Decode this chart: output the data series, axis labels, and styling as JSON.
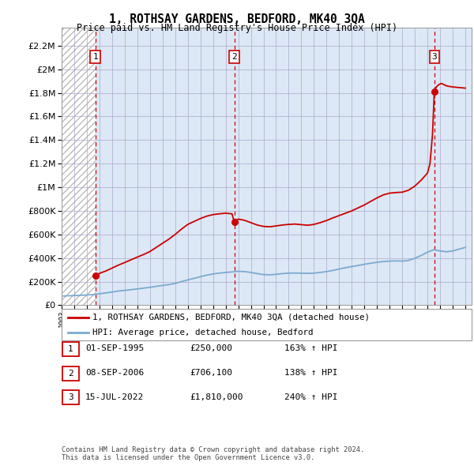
{
  "title": "1, ROTHSAY GARDENS, BEDFORD, MK40 3QA",
  "subtitle": "Price paid vs. HM Land Registry's House Price Index (HPI)",
  "ylabel_values": [
    0,
    200000,
    400000,
    600000,
    800000,
    1000000,
    1200000,
    1400000,
    1600000,
    1800000,
    2000000,
    2200000
  ],
  "ylim": [
    0,
    2350000
  ],
  "xlim_start": 1993.0,
  "xlim_end": 2025.5,
  "sale_dates": [
    1995.67,
    2006.69,
    2022.54
  ],
  "sale_prices": [
    250000,
    706100,
    1810000
  ],
  "sale_labels": [
    "1",
    "2",
    "3"
  ],
  "hpi_color": "#7aaad0",
  "price_color": "#cc0000",
  "legend_label_price": "1, ROTHSAY GARDENS, BEDFORD, MK40 3QA (detached house)",
  "legend_label_hpi": "HPI: Average price, detached house, Bedford",
  "table_rows": [
    {
      "num": "1",
      "date": "01-SEP-1995",
      "price": "£250,000",
      "hpi": "163% ↑ HPI"
    },
    {
      "num": "2",
      "date": "08-SEP-2006",
      "price": "£706,100",
      "hpi": "138% ↑ HPI"
    },
    {
      "num": "3",
      "date": "15-JUL-2022",
      "price": "£1,810,000",
      "hpi": "240% ↑ HPI"
    }
  ],
  "footer": "Contains HM Land Registry data © Crown copyright and database right 2024.\nThis data is licensed under the Open Government Licence v3.0.",
  "hpi_years": [
    1993,
    1993.5,
    1994,
    1994.5,
    1995,
    1995.5,
    1996,
    1996.5,
    1997,
    1997.5,
    1998,
    1998.5,
    1999,
    1999.5,
    2000,
    2000.5,
    2001,
    2001.5,
    2002,
    2002.5,
    2003,
    2003.5,
    2004,
    2004.5,
    2005,
    2005.5,
    2006,
    2006.5,
    2007,
    2007.5,
    2008,
    2008.5,
    2009,
    2009.5,
    2010,
    2010.5,
    2011,
    2011.5,
    2012,
    2012.5,
    2013,
    2013.5,
    2014,
    2014.5,
    2015,
    2015.5,
    2016,
    2016.5,
    2017,
    2017.5,
    2018,
    2018.5,
    2019,
    2019.5,
    2020,
    2020.5,
    2021,
    2021.5,
    2022,
    2022.5,
    2023,
    2023.5,
    2024,
    2024.5,
    2025
  ],
  "hpi_prices": [
    78000,
    80000,
    82000,
    84000,
    87000,
    90000,
    97000,
    104000,
    112000,
    120000,
    126000,
    132000,
    138000,
    145000,
    152000,
    160000,
    168000,
    175000,
    185000,
    200000,
    215000,
    228000,
    242000,
    255000,
    265000,
    272000,
    278000,
    282000,
    288000,
    285000,
    278000,
    268000,
    260000,
    258000,
    262000,
    268000,
    272000,
    273000,
    271000,
    270000,
    272000,
    278000,
    285000,
    295000,
    307000,
    318000,
    328000,
    337000,
    347000,
    356000,
    364000,
    370000,
    374000,
    376000,
    374000,
    380000,
    398000,
    422000,
    450000,
    470000,
    460000,
    453000,
    460000,
    475000,
    490000
  ],
  "price_line_years": [
    1995.67,
    1996.0,
    1996.5,
    1997.0,
    1997.5,
    1998.0,
    1998.5,
    1999.0,
    1999.5,
    2000.0,
    2000.5,
    2001.0,
    2001.5,
    2002.0,
    2002.5,
    2003.0,
    2003.5,
    2004.0,
    2004.5,
    2005.0,
    2005.5,
    2006.0,
    2006.5,
    2006.69,
    2007.0,
    2007.5,
    2008.0,
    2008.5,
    2009.0,
    2009.5,
    2010.0,
    2010.5,
    2011.0,
    2011.5,
    2012.0,
    2012.5,
    2013.0,
    2013.5,
    2014.0,
    2014.5,
    2015.0,
    2015.5,
    2016.0,
    2016.5,
    2017.0,
    2017.5,
    2018.0,
    2018.5,
    2019.0,
    2019.5,
    2020.0,
    2020.5,
    2021.0,
    2021.5,
    2022.0,
    2022.2,
    2022.4,
    2022.54,
    2022.7,
    2022.9,
    2023.1,
    2023.3,
    2023.5,
    2023.7,
    2024.0,
    2024.5,
    2025.0
  ],
  "price_line_prices": [
    250000,
    270000,
    290000,
    315000,
    340000,
    362000,
    385000,
    408000,
    430000,
    455000,
    490000,
    525000,
    560000,
    600000,
    645000,
    685000,
    710000,
    735000,
    755000,
    768000,
    775000,
    780000,
    775000,
    706100,
    730000,
    720000,
    700000,
    680000,
    668000,
    665000,
    672000,
    680000,
    685000,
    688000,
    683000,
    678000,
    685000,
    700000,
    718000,
    740000,
    760000,
    780000,
    800000,
    825000,
    850000,
    880000,
    910000,
    935000,
    950000,
    955000,
    958000,
    975000,
    1010000,
    1060000,
    1120000,
    1200000,
    1450000,
    1810000,
    1850000,
    1870000,
    1880000,
    1870000,
    1860000,
    1855000,
    1850000,
    1845000,
    1840000
  ]
}
